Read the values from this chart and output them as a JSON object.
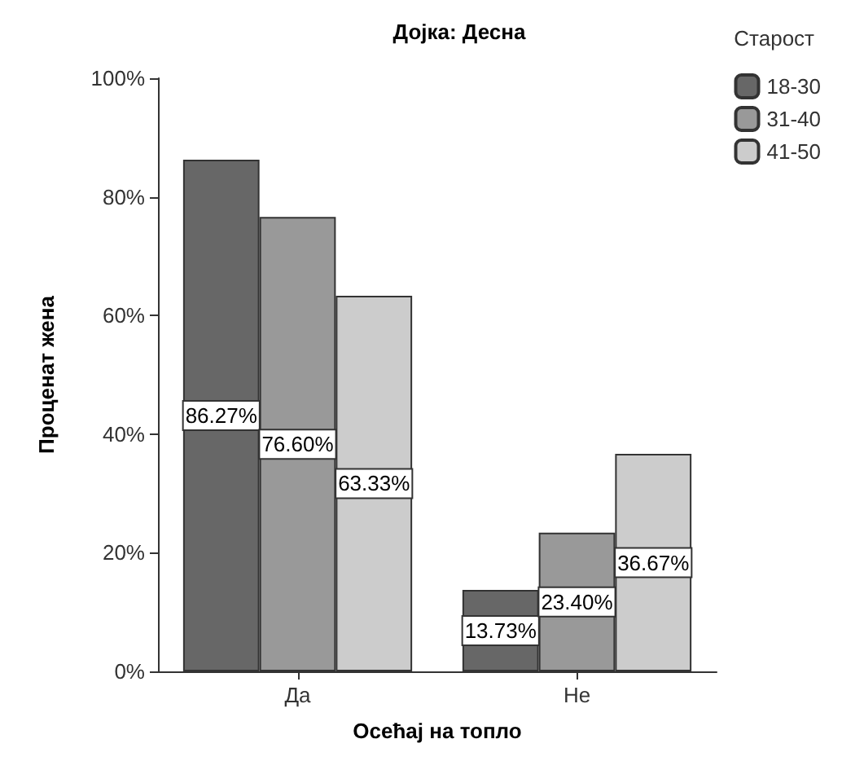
{
  "chart_data": {
    "type": "bar",
    "title": "Дојка: Десна",
    "xlabel": "Осећај на топло",
    "ylabel": "Проценат жена",
    "legend_title": "Старост",
    "categories": [
      "Да",
      "Не"
    ],
    "series": [
      {
        "name": "18-30",
        "color": "#676767",
        "values": [
          86.27,
          13.73
        ],
        "value_labels": [
          "86.27%",
          "13.73%"
        ]
      },
      {
        "name": "31-40",
        "color": "#999999",
        "values": [
          76.6,
          23.4
        ],
        "value_labels": [
          "76.60%",
          "23.40%"
        ]
      },
      {
        "name": "41-50",
        "color": "#cccccc",
        "values": [
          63.33,
          36.67
        ],
        "value_labels": [
          "63.33%",
          "36.67%"
        ]
      }
    ],
    "ylim": [
      0,
      100
    ],
    "yticks": [
      {
        "value": 0,
        "label": "0%"
      },
      {
        "value": 20,
        "label": "20%"
      },
      {
        "value": 40,
        "label": "40%"
      },
      {
        "value": 60,
        "label": "60%"
      },
      {
        "value": 80,
        "label": "80%"
      },
      {
        "value": 100,
        "label": "100%"
      }
    ],
    "grid": false,
    "legend": "top right"
  }
}
